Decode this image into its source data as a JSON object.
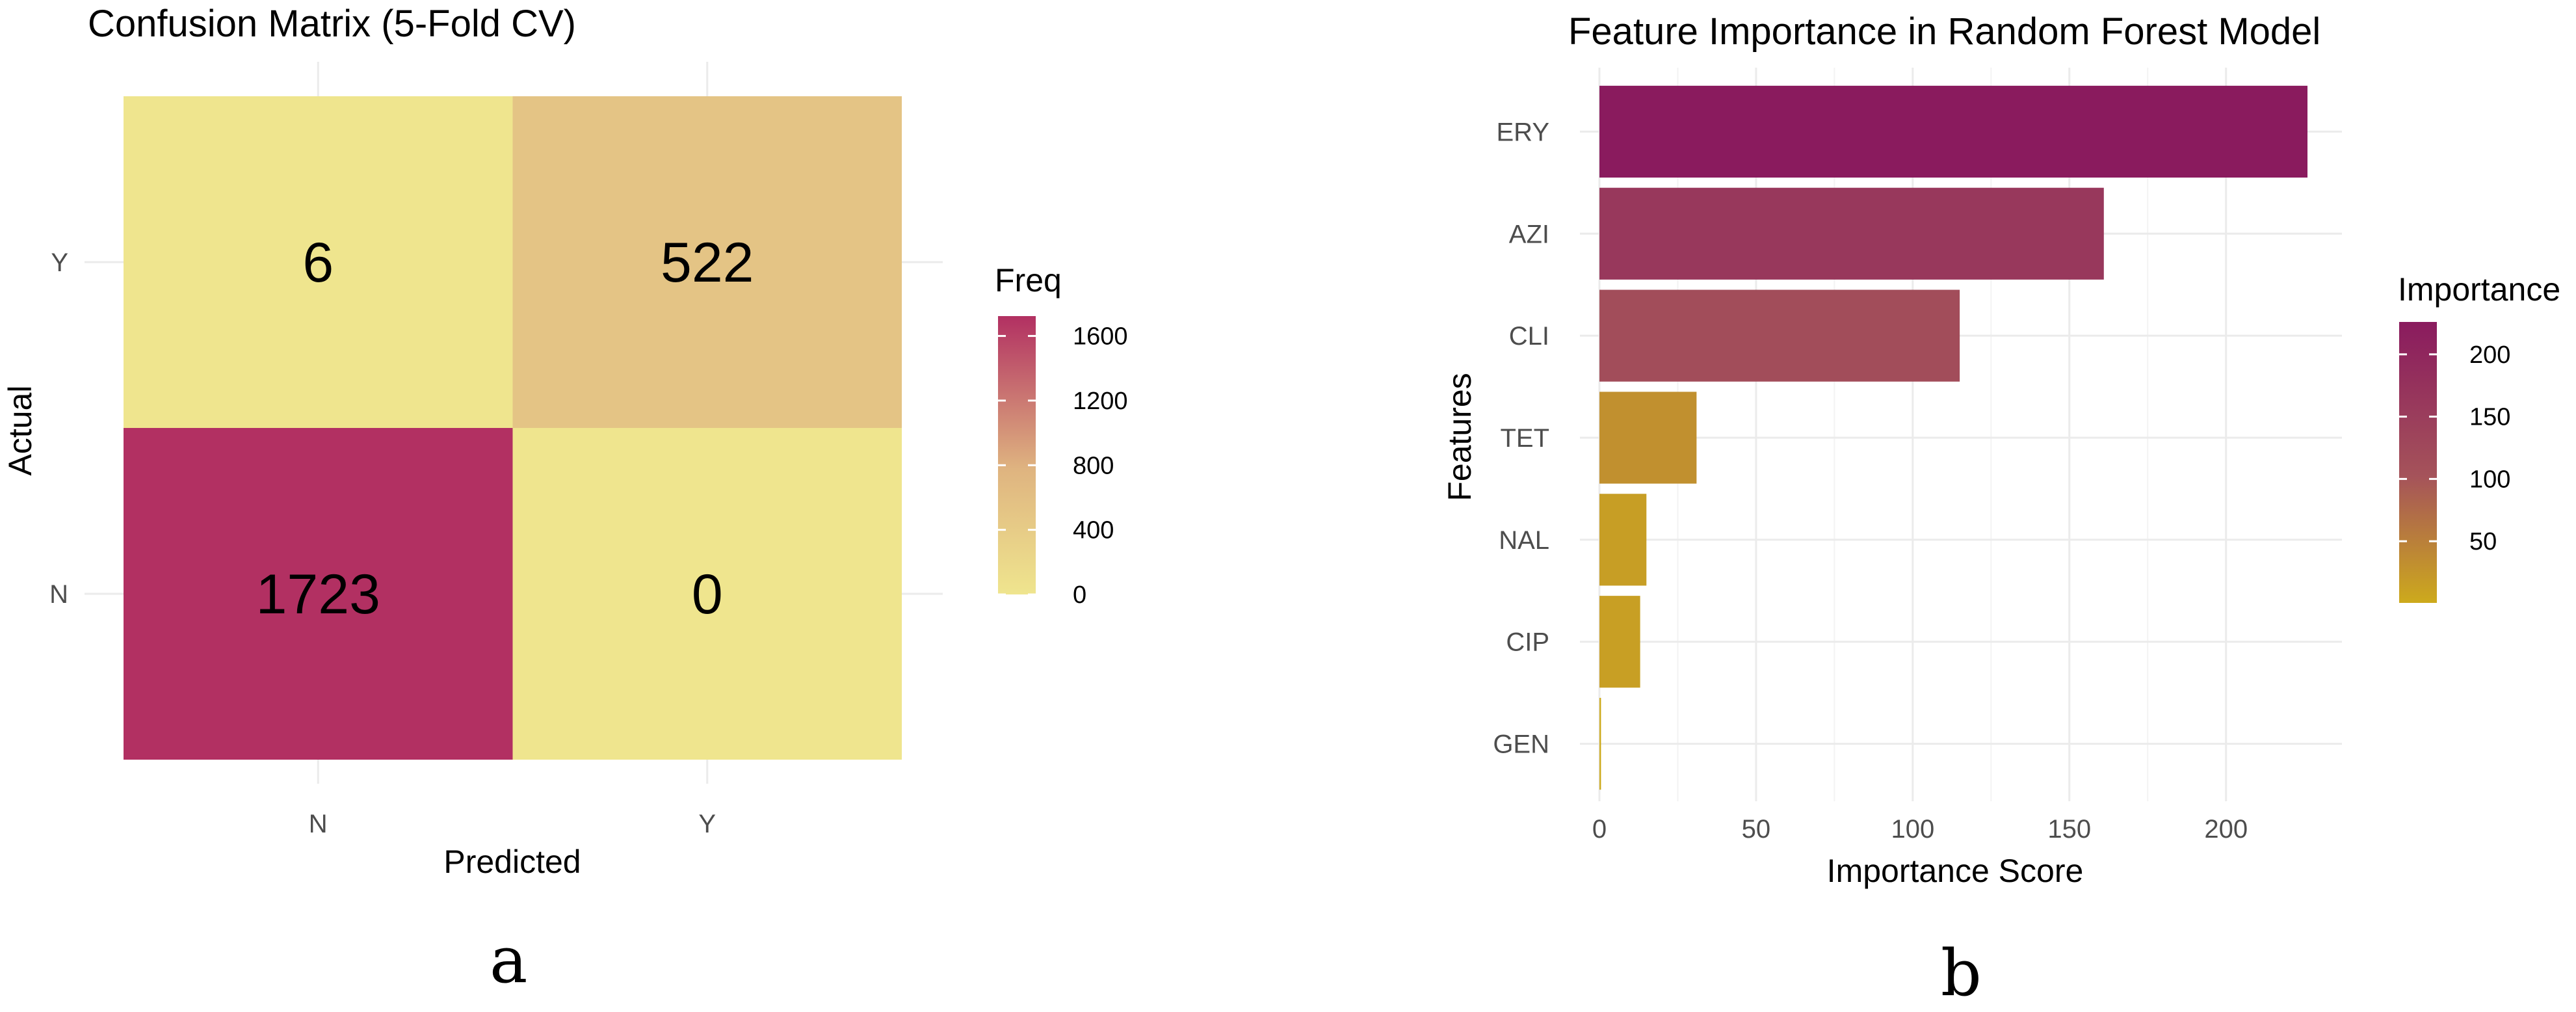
{
  "panels": {
    "a_label": "a",
    "b_label": "b"
  },
  "chart_data": [
    {
      "type": "heatmap",
      "title": "Confusion Matrix (5-Fold CV)",
      "xlabel": "Predicted",
      "ylabel": "Actual",
      "x_categories": [
        "N",
        "Y"
      ],
      "y_categories": [
        "Y",
        "N"
      ],
      "cells": [
        {
          "actual": "Y",
          "predicted": "N",
          "value": 6,
          "label": "6"
        },
        {
          "actual": "Y",
          "predicted": "Y",
          "value": 522,
          "label": "522"
        },
        {
          "actual": "N",
          "predicted": "N",
          "value": 1723,
          "label": "1723"
        },
        {
          "actual": "N",
          "predicted": "Y",
          "value": 0,
          "label": "0"
        }
      ],
      "legend": {
        "title": "Freq",
        "ticks": [
          0,
          400,
          800,
          1200,
          1600
        ],
        "range": [
          0,
          1723
        ],
        "colors": [
          "#EFE58E",
          "#DFB480",
          "#B23062"
        ],
        "placement": "right"
      },
      "grid": true
    },
    {
      "type": "bar",
      "orientation": "horizontal",
      "title": "Feature Importance in Random Forest Model",
      "xlabel": "Importance Score",
      "ylabel": "Features",
      "categories": [
        "ERY",
        "AZI",
        "CLI",
        "TET",
        "NAL",
        "CIP",
        "GEN"
      ],
      "values": [
        226,
        161,
        115,
        31,
        15,
        13,
        0.5
      ],
      "xlim": [
        0,
        237
      ],
      "xticks": [
        0,
        50,
        100,
        150,
        200
      ],
      "legend": {
        "title": "Importance",
        "ticks": [
          50,
          100,
          150,
          200
        ],
        "range": [
          0.5,
          226
        ],
        "colors": [
          "#CDAA1C",
          "#A5535A",
          "#8A1B5E"
        ],
        "placement": "right"
      },
      "grid": true
    }
  ]
}
